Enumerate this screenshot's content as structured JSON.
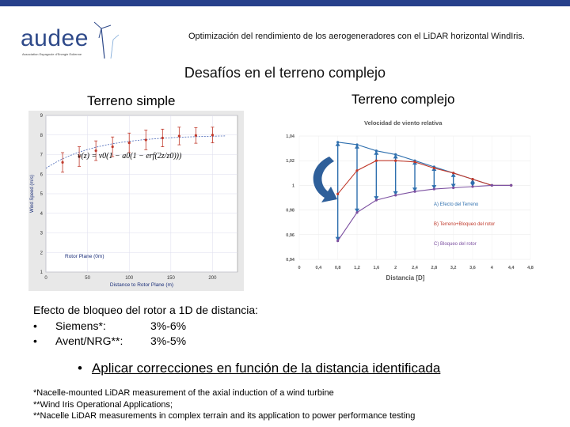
{
  "header": {
    "logo_text": "audee",
    "logo_tagline": "Association Espagnole d'Energie Eolienne",
    "title": "Optimización del rendimiento de los aerogeneradores con el LiDAR horizontal WindIris."
  },
  "slide": {
    "title": "Desafíos en el terreno complejo",
    "left_subtitle": "Terreno simple",
    "right_subtitle": "Terreno complejo",
    "info": {
      "heading": "Efecto de bloqueo del rotor a 1D de distancia:",
      "items": [
        {
          "bullet": "•",
          "name": "Siemens*:",
          "value": "3%-6%"
        },
        {
          "bullet": "•",
          "name": "Avent/NRG**:",
          "value": "3%-5%"
        }
      ]
    },
    "action": {
      "bullet": "•",
      "text": "Aplicar correcciones en función de la distancia identificada"
    },
    "footnotes": [
      "*Nacelle-mounted LiDAR measurement of the axial induction of a wind turbine",
      "**Wind Iris Operational Applications;",
      "**Nacelle LiDAR measurements in complex terrain and its application to power performance testing"
    ]
  },
  "chart_data": [
    {
      "type": "scatter",
      "xlabel": "Distance to Rotor Plane (m)",
      "ylabel": "Wind Speed (m/s)",
      "xlim": [
        0,
        230
      ],
      "ylim": [
        1,
        9
      ],
      "x_ticks": [
        "0",
        "50",
        "100",
        "150",
        "200"
      ],
      "y_ticks": [
        "1",
        "2",
        "3",
        "4",
        "5",
        "6",
        "7",
        "8",
        "9"
      ],
      "annotation": "Rotor Plane (0m)",
      "formula": "v(z) = v0(1 − a0(1 − erf(2z/z0)))",
      "grid": true,
      "series": [
        {
          "x": [
            20,
            40,
            60,
            80,
            100,
            120,
            140,
            160,
            180,
            200
          ],
          "y": [
            6.6,
            6.9,
            7.2,
            7.4,
            7.6,
            7.75,
            7.85,
            7.95,
            7.98,
            8.0
          ],
          "err": [
            0.5,
            0.5,
            0.5,
            0.5,
            0.5,
            0.5,
            0.45,
            0.45,
            0.4,
            0.4
          ]
        }
      ]
    },
    {
      "type": "line",
      "title": "Velocidad de viento relativa",
      "xlabel": "Distancia [D]",
      "x_ticks": [
        "0",
        "0,4",
        "0,8",
        "1,2",
        "1,6",
        "2",
        "2,4",
        "2,8",
        "3,2",
        "3,6",
        "4",
        "4,4",
        "4,8"
      ],
      "y_ticks": [
        "1,04",
        "1,02",
        "1",
        "0,98",
        "0,96",
        "0,94"
      ],
      "xlim": [
        0,
        4.8
      ],
      "ylim": [
        0.94,
        1.04
      ],
      "grid": true,
      "series": [
        {
          "name": "A) Efecto del Terreno",
          "color": "#2e6fae",
          "x": [
            0.8,
            1.2,
            1.6,
            2.0,
            2.4,
            2.8,
            3.2,
            3.6,
            4.0,
            4.4
          ],
          "y": [
            1.035,
            1.033,
            1.028,
            1.025,
            1.02,
            1.015,
            1.01,
            1.005,
            1.0,
            1.0
          ]
        },
        {
          "name": "B) Terreno+Bloqueo del rotor",
          "color": "#c0392b",
          "x": [
            0.8,
            1.2,
            1.6,
            2.0,
            2.4,
            2.8,
            3.2,
            3.6,
            4.0,
            4.4
          ],
          "y": [
            0.993,
            1.012,
            1.02,
            1.02,
            1.019,
            1.014,
            1.01,
            1.005,
            1.0,
            1.0
          ]
        },
        {
          "name": "C) Bloqueo del rotor",
          "color": "#7b4fa0",
          "x": [
            0.8,
            1.2,
            1.6,
            2.0,
            2.4,
            2.8,
            3.2,
            3.6,
            4.0,
            4.4
          ],
          "y": [
            0.955,
            0.978,
            0.988,
            0.992,
            0.995,
            0.997,
            0.998,
            0.999,
            1.0,
            1.0
          ]
        }
      ]
    }
  ]
}
